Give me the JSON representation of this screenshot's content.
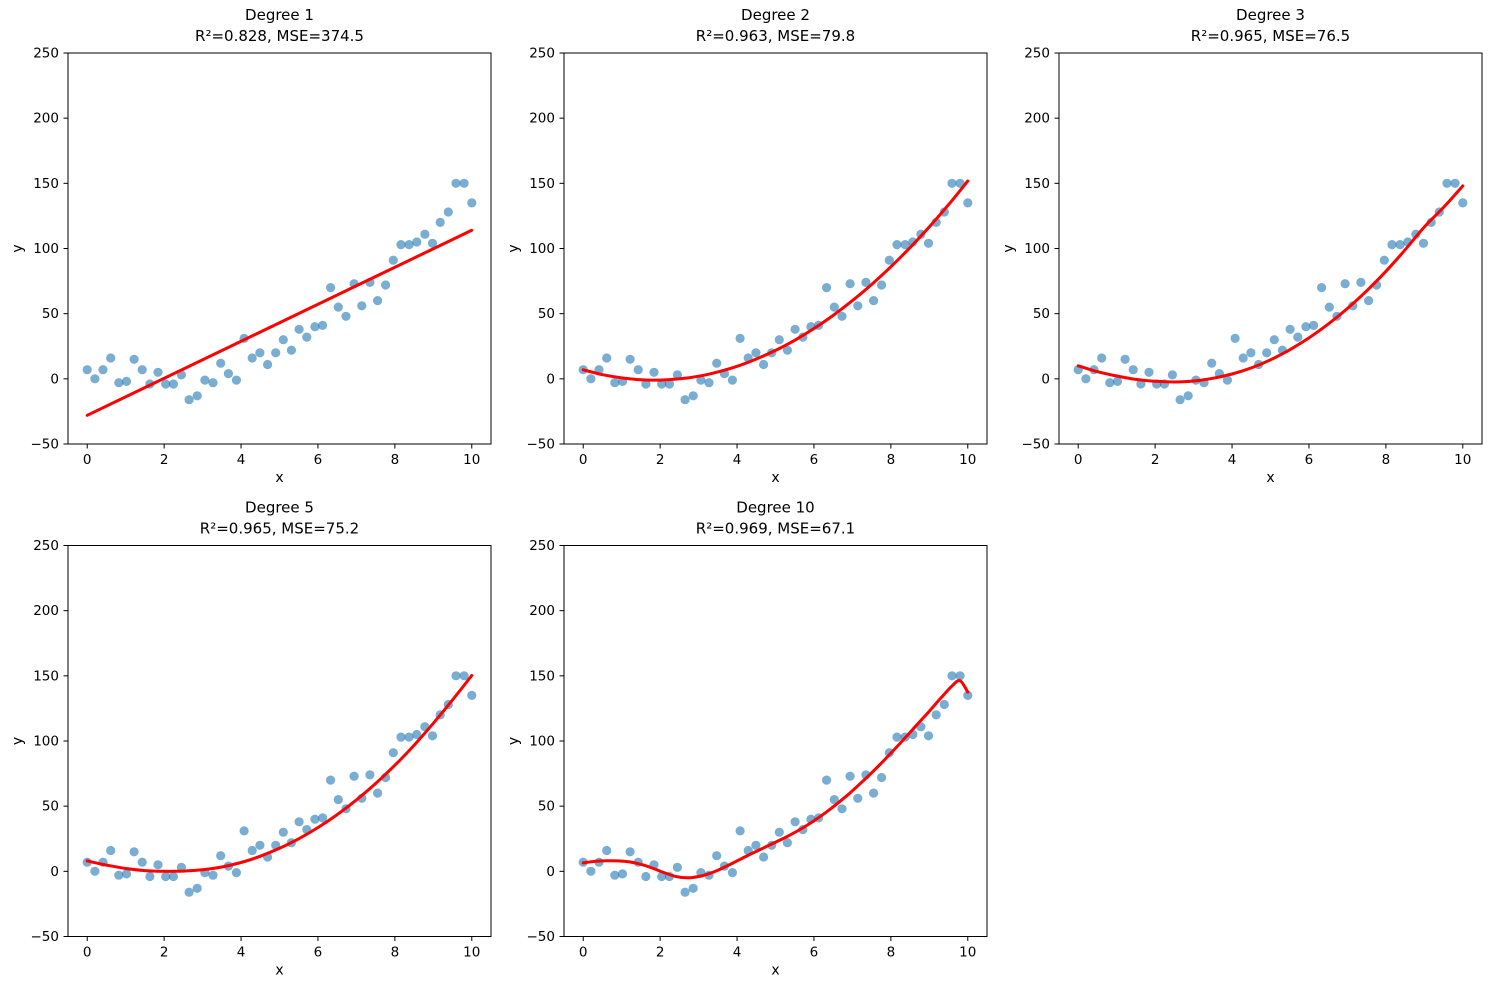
{
  "figure": {
    "background": "#ffffff",
    "kind": "matplotlib-multi-panel-regression-figure"
  },
  "style": {
    "scatter_color": "#1f77b4",
    "scatter_opacity": 0.6,
    "scatter_radius": 4.6,
    "fit_line_color": "#ff0000",
    "fit_line_width": 3,
    "axis_color": "#000000",
    "text_color": "#000000"
  },
  "chart_data": {
    "type": "scatter",
    "legend": "none",
    "grid": false,
    "axes": {
      "xlabel": "x",
      "ylabel": "y",
      "xlim": [
        -0.5,
        10.5
      ],
      "ylim": [
        -50,
        250
      ],
      "xticks": [
        0,
        2,
        4,
        6,
        8,
        10
      ],
      "xtick_labels": [
        "0",
        "2",
        "4",
        "6",
        "8",
        "10"
      ],
      "yticks": [
        -50,
        0,
        50,
        100,
        150,
        200,
        250
      ],
      "ytick_labels": [
        "−50",
        "0",
        "50",
        "100",
        "150",
        "200",
        "250"
      ]
    },
    "shared_scatter": {
      "x": [
        0,
        0.2,
        0.41,
        0.61,
        0.82,
        1.02,
        1.22,
        1.43,
        1.63,
        1.84,
        2.04,
        2.24,
        2.45,
        2.65,
        2.86,
        3.06,
        3.27,
        3.47,
        3.67,
        3.88,
        4.08,
        4.29,
        4.49,
        4.69,
        4.9,
        5.1,
        5.31,
        5.51,
        5.71,
        5.92,
        6.12,
        6.33,
        6.53,
        6.73,
        6.94,
        7.14,
        7.35,
        7.55,
        7.76,
        7.96,
        8.16,
        8.37,
        8.57,
        8.78,
        8.98,
        9.18,
        9.39,
        9.59,
        9.8,
        10
      ],
      "y": [
        7,
        0,
        7,
        16,
        -3,
        -2,
        15,
        7,
        -4,
        5,
        -4,
        -4,
        3,
        -16,
        -13,
        -1,
        -3,
        12,
        4,
        -1,
        31,
        16,
        20,
        11,
        20,
        30,
        22,
        38,
        32,
        40,
        41,
        70,
        55,
        48,
        73,
        56,
        74,
        60,
        72,
        91,
        103,
        103,
        105,
        111,
        104,
        120,
        128,
        150,
        150,
        135
      ]
    },
    "subplots": [
      {
        "id": "degree-1",
        "title": "Degree 1",
        "subtitle": "R²=0.828, MSE=374.5",
        "degree": 1,
        "r2": 0.828,
        "mse": 374.5,
        "fit_curve": {
          "x": [
            0,
            10
          ],
          "y": [
            -28,
            114
          ]
        }
      },
      {
        "id": "degree-2",
        "title": "Degree 2",
        "subtitle": "R²=0.963, MSE=79.8",
        "degree": 2,
        "r2": 0.963,
        "mse": 79.8,
        "fit_curve": {
          "x": [
            0,
            0.5,
            1,
            1.5,
            2,
            2.5,
            3,
            3.5,
            4,
            4.5,
            5,
            5.5,
            6,
            6.5,
            7,
            7.5,
            8,
            8.5,
            9,
            9.5,
            10
          ],
          "y": [
            6.9,
            3.2,
            0.7,
            -0.7,
            -1,
            0,
            2,
            5.3,
            9.6,
            15.2,
            21.8,
            29.6,
            38.6,
            48.7,
            60,
            72.4,
            86,
            100.7,
            116.6,
            133.6,
            151.8
          ]
        }
      },
      {
        "id": "degree-3",
        "title": "Degree 3",
        "subtitle": "R²=0.965, MSE=76.5",
        "degree": 3,
        "r2": 0.965,
        "mse": 76.5,
        "fit_curve": {
          "x": [
            0,
            0.5,
            1,
            1.5,
            2,
            2.5,
            3,
            3.5,
            4,
            4.5,
            5,
            5.5,
            6,
            6.5,
            7,
            7.5,
            8,
            8.5,
            9,
            9.5,
            10
          ],
          "y": [
            10,
            5.5,
            2.2,
            -0.4,
            -1.9,
            -2.4,
            -1.7,
            0.4,
            3.7,
            8.4,
            14.6,
            22.3,
            31.4,
            42,
            54,
            67.5,
            82.5,
            99,
            116.5,
            131.5,
            148
          ]
        }
      },
      {
        "id": "degree-5",
        "title": "Degree 5",
        "subtitle": "R²=0.965, MSE=75.2",
        "degree": 5,
        "r2": 0.965,
        "mse": 75.2,
        "fit_curve": {
          "x": [
            0,
            0.5,
            1,
            1.5,
            2,
            2.5,
            3,
            3.5,
            4,
            4.5,
            5,
            5.5,
            6,
            6.5,
            7,
            7.5,
            8,
            8.5,
            9,
            9.5,
            10
          ],
          "y": [
            8,
            4.8,
            2.2,
            0.6,
            0,
            0.2,
            1.2,
            3.3,
            6.8,
            11.6,
            17.7,
            25,
            33.6,
            43.5,
            54.8,
            67.4,
            81.4,
            96.8,
            113.6,
            131.5,
            150.3
          ]
        }
      },
      {
        "id": "degree-10",
        "title": "Degree 10",
        "subtitle": "R²=0.969, MSE=67.1",
        "degree": 10,
        "r2": 0.969,
        "mse": 67.1,
        "fit_curve": {
          "x": [
            0,
            0.3,
            0.6,
            0.9,
            1.2,
            1.5,
            1.8,
            2.1,
            2.4,
            2.7,
            3,
            3.3,
            3.6,
            3.9,
            4.2,
            4.5,
            4.8,
            5.1,
            5.4,
            5.7,
            6,
            6.3,
            6.6,
            6.9,
            7.2,
            7.5,
            7.8,
            8.1,
            8.4,
            8.7,
            9,
            9.3,
            9.6,
            9.8,
            10
          ],
          "y": [
            6.5,
            7.6,
            8.1,
            8,
            7.2,
            5.4,
            2.5,
            -1,
            -3.9,
            -5,
            -4,
            -1.5,
            2.2,
            6.5,
            11,
            15.3,
            19.5,
            23.7,
            28.2,
            33.2,
            38.8,
            45,
            51.8,
            59.2,
            67.2,
            75.6,
            84.5,
            93.8,
            103.4,
            113.2,
            122.9,
            133,
            142.5,
            146.3,
            137.5
          ]
        }
      }
    ]
  }
}
